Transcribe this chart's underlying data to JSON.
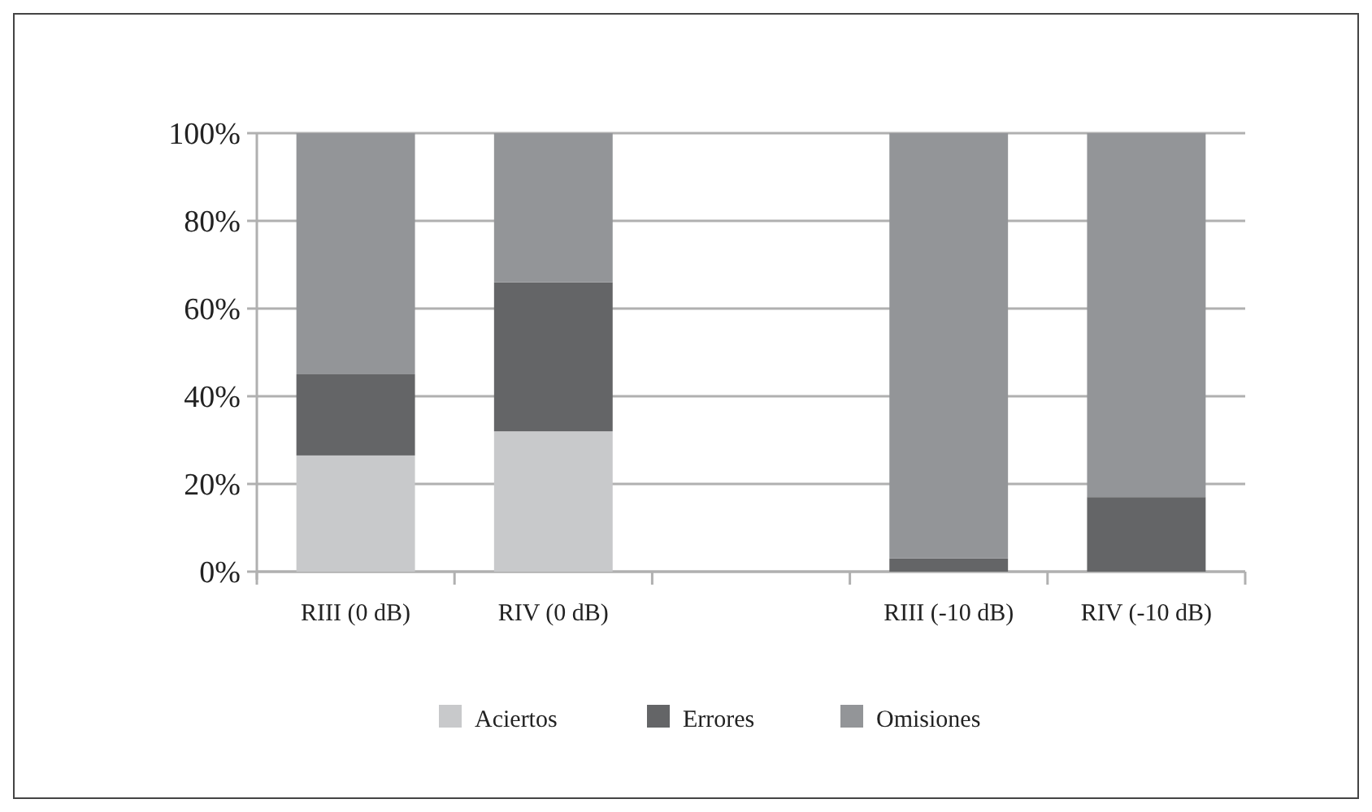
{
  "chart_data": {
    "type": "bar",
    "stacked": true,
    "categories": [
      "RIII (0 dB)",
      "RIV (0 dB)",
      null,
      "RIII (-10 dB)",
      "RIV (-10 dB)"
    ],
    "series": [
      {
        "name": "Aciertos",
        "color": "#c8c9cb",
        "values": [
          26.5,
          32,
          null,
          0,
          0
        ]
      },
      {
        "name": "Errores",
        "color": "#646567",
        "values": [
          18.5,
          34,
          null,
          3,
          17
        ]
      },
      {
        "name": "Omisiones",
        "color": "#939598",
        "values": [
          55,
          34,
          null,
          97,
          83
        ]
      }
    ],
    "ylim": [
      0,
      100
    ],
    "yticks": [
      {
        "value": 0,
        "label": "0%"
      },
      {
        "value": 20,
        "label": "20%"
      },
      {
        "value": 40,
        "label": "40%"
      },
      {
        "value": 60,
        "label": "60%"
      },
      {
        "value": 80,
        "label": "80%"
      },
      {
        "value": 100,
        "label": "100%"
      }
    ],
    "grid": "y",
    "legend": "bottom"
  }
}
